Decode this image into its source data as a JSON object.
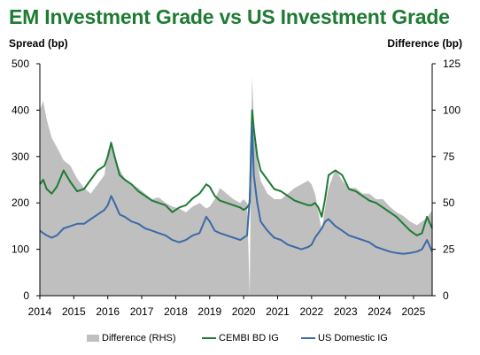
{
  "chart_data": {
    "type": "line",
    "title": "EM Investment Grade vs US Investment Grade",
    "ylabel_left": "Spread (bp)",
    "ylabel_right": "Difference (bp)",
    "ylim_left": [
      0,
      500
    ],
    "ylim_right": [
      0,
      125
    ],
    "yticks_left": [
      "0",
      "100",
      "200",
      "300",
      "400",
      "500"
    ],
    "yticks_right": [
      "0",
      "25",
      "50",
      "75",
      "100",
      "125"
    ],
    "xticks": [
      "2014",
      "2015",
      "2016",
      "2017",
      "2018",
      "2019",
      "2020",
      "2021",
      "2022",
      "2023",
      "2024",
      "2025"
    ],
    "xlim": [
      2014.0,
      2025.55
    ],
    "legend_position": "bottom",
    "series": [
      {
        "name": "Difference (RHS)",
        "kind": "area",
        "axis": "right",
        "color": "#bfbfbf",
        "x": [
          2014.0,
          2014.1,
          2014.2,
          2014.35,
          2014.5,
          2014.7,
          2014.9,
          2015.1,
          2015.3,
          2015.5,
          2015.7,
          2015.9,
          2016.0,
          2016.1,
          2016.2,
          2016.35,
          2016.5,
          2016.7,
          2016.9,
          2017.1,
          2017.3,
          2017.5,
          2017.7,
          2017.9,
          2018.1,
          2018.3,
          2018.5,
          2018.7,
          2018.9,
          2019.0,
          2019.15,
          2019.3,
          2019.5,
          2019.7,
          2019.9,
          2020.0,
          2020.1,
          2020.18,
          2020.22,
          2020.25,
          2020.3,
          2020.4,
          2020.5,
          2020.7,
          2020.9,
          2021.1,
          2021.3,
          2021.5,
          2021.7,
          2021.9,
          2022.0,
          2022.1,
          2022.2,
          2022.3,
          2022.4,
          2022.5,
          2022.7,
          2022.9,
          2023.1,
          2023.3,
          2023.5,
          2023.7,
          2023.9,
          2024.1,
          2024.3,
          2024.5,
          2024.7,
          2024.9,
          2025.1,
          2025.25,
          2025.4,
          2025.55
        ],
        "values": [
          100,
          105,
          95,
          85,
          80,
          73,
          70,
          63,
          58,
          55,
          60,
          65,
          78,
          82,
          75,
          68,
          63,
          60,
          58,
          55,
          52,
          53,
          50,
          48,
          47,
          45,
          48,
          50,
          47,
          48,
          52,
          58,
          55,
          52,
          50,
          52,
          50,
          0,
          90,
          118,
          95,
          72,
          62,
          55,
          52,
          52,
          55,
          58,
          60,
          62,
          60,
          55,
          45,
          35,
          48,
          58,
          68,
          62,
          58,
          58,
          55,
          55,
          52,
          52,
          48,
          45,
          43,
          40,
          38,
          40,
          42,
          46
        ]
      },
      {
        "name": "CEMBI BD IG",
        "kind": "line",
        "axis": "left",
        "color": "#1e7b34",
        "x": [
          2014.0,
          2014.1,
          2014.2,
          2014.35,
          2014.5,
          2014.7,
          2014.9,
          2015.1,
          2015.3,
          2015.5,
          2015.7,
          2015.9,
          2016.0,
          2016.1,
          2016.2,
          2016.35,
          2016.5,
          2016.7,
          2016.9,
          2017.1,
          2017.3,
          2017.5,
          2017.7,
          2017.9,
          2018.1,
          2018.3,
          2018.5,
          2018.7,
          2018.9,
          2019.0,
          2019.15,
          2019.3,
          2019.5,
          2019.7,
          2019.9,
          2020.0,
          2020.1,
          2020.18,
          2020.22,
          2020.25,
          2020.3,
          2020.4,
          2020.5,
          2020.7,
          2020.9,
          2021.1,
          2021.3,
          2021.5,
          2021.7,
          2021.9,
          2022.0,
          2022.1,
          2022.2,
          2022.3,
          2022.4,
          2022.5,
          2022.7,
          2022.9,
          2023.1,
          2023.3,
          2023.5,
          2023.7,
          2023.9,
          2024.1,
          2024.3,
          2024.5,
          2024.7,
          2024.9,
          2025.1,
          2025.25,
          2025.4,
          2025.55
        ],
        "values": [
          240,
          250,
          230,
          220,
          235,
          270,
          245,
          225,
          230,
          250,
          270,
          280,
          300,
          330,
          300,
          260,
          250,
          240,
          225,
          215,
          205,
          200,
          195,
          180,
          190,
          195,
          210,
          220,
          240,
          235,
          215,
          205,
          200,
          195,
          190,
          185,
          190,
          200,
          330,
          400,
          360,
          300,
          270,
          250,
          230,
          225,
          215,
          205,
          200,
          195,
          195,
          200,
          190,
          170,
          210,
          260,
          270,
          260,
          230,
          225,
          215,
          205,
          200,
          190,
          180,
          170,
          155,
          140,
          130,
          135,
          170,
          145
        ]
      },
      {
        "name": "US Domestic IG",
        "kind": "line",
        "axis": "left",
        "color": "#3b6aa8",
        "x": [
          2014.0,
          2014.1,
          2014.2,
          2014.35,
          2014.5,
          2014.7,
          2014.9,
          2015.1,
          2015.3,
          2015.5,
          2015.7,
          2015.9,
          2016.0,
          2016.1,
          2016.2,
          2016.35,
          2016.5,
          2016.7,
          2016.9,
          2017.1,
          2017.3,
          2017.5,
          2017.7,
          2017.9,
          2018.1,
          2018.3,
          2018.5,
          2018.7,
          2018.9,
          2019.0,
          2019.15,
          2019.3,
          2019.5,
          2019.7,
          2019.9,
          2020.0,
          2020.1,
          2020.18,
          2020.22,
          2020.25,
          2020.3,
          2020.4,
          2020.5,
          2020.7,
          2020.9,
          2021.1,
          2021.3,
          2021.5,
          2021.7,
          2021.9,
          2022.0,
          2022.1,
          2022.2,
          2022.3,
          2022.4,
          2022.5,
          2022.7,
          2022.9,
          2023.1,
          2023.3,
          2023.5,
          2023.7,
          2023.9,
          2024.1,
          2024.3,
          2024.5,
          2024.7,
          2024.9,
          2025.1,
          2025.25,
          2025.4,
          2025.55
        ],
        "values": [
          140,
          135,
          130,
          125,
          130,
          145,
          150,
          155,
          155,
          165,
          175,
          185,
          195,
          215,
          200,
          175,
          170,
          160,
          155,
          145,
          140,
          135,
          130,
          120,
          115,
          120,
          130,
          135,
          170,
          160,
          140,
          135,
          130,
          125,
          120,
          125,
          130,
          210,
          300,
          370,
          260,
          200,
          160,
          140,
          125,
          120,
          110,
          105,
          100,
          105,
          110,
          125,
          135,
          145,
          160,
          165,
          150,
          140,
          130,
          125,
          120,
          115,
          105,
          100,
          95,
          92,
          90,
          92,
          95,
          100,
          120,
          95
        ]
      }
    ]
  }
}
